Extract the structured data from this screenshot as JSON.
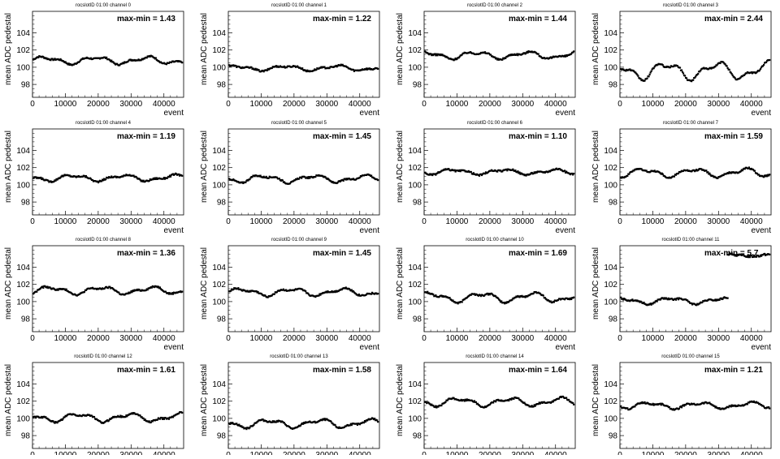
{
  "chart_data": {
    "type": "scatter",
    "layout": "4x4 grid",
    "xlim": [
      0,
      46000
    ],
    "ylim": [
      96.5,
      106.5
    ],
    "xticks": [
      0,
      10000,
      20000,
      30000,
      40000
    ],
    "yticks": [
      98,
      100,
      102,
      104
    ],
    "xlabel": "event",
    "ylabel": "mean ADC pedestal",
    "marker_color": "#000000",
    "panels": [
      {
        "title": "rocslotID 01:00    channel  0",
        "annotation": "max-min = 1.43",
        "baseline": 100.8,
        "amplitude": 0.35
      },
      {
        "title": "rocslotID 01:00    channel  1",
        "annotation": "max-min = 1.22",
        "baseline": 99.9,
        "amplitude": 0.25
      },
      {
        "title": "rocslotID 01:00    channel  2",
        "annotation": "max-min = 1.44",
        "baseline": 101.4,
        "amplitude": 0.35
      },
      {
        "title": "rocslotID 01:00    channel  3",
        "annotation": "max-min = 2.44",
        "baseline": 99.6,
        "amplitude": 0.8
      },
      {
        "title": "rocslotID 01:00    channel  4",
        "annotation": "max-min = 1.19",
        "baseline": 100.8,
        "amplitude": 0.3
      },
      {
        "title": "rocslotID 01:00    channel  5",
        "annotation": "max-min = 1.45",
        "baseline": 100.7,
        "amplitude": 0.35
      },
      {
        "title": "rocslotID 01:00    channel  6",
        "annotation": "max-min = 1.10",
        "baseline": 101.5,
        "amplitude": 0.25
      },
      {
        "title": "rocslotID 01:00    channel  7",
        "annotation": "max-min = 1.59",
        "baseline": 101.4,
        "amplitude": 0.4
      },
      {
        "title": "rocslotID 01:00    channel  8",
        "annotation": "max-min = 1.36",
        "baseline": 101.3,
        "amplitude": 0.35
      },
      {
        "title": "rocslotID 01:00    channel  9",
        "annotation": "max-min = 1.45",
        "baseline": 101.1,
        "amplitude": 0.35
      },
      {
        "title": "rocslotID 01:00    channel  10",
        "annotation": "max-min = 1.69",
        "baseline": 100.5,
        "amplitude": 0.45
      },
      {
        "title": "rocslotID 01:00    channel  11",
        "annotation": "max-min = 5.7",
        "baseline": 100.1,
        "amplitude": 0.3,
        "jump_at": 33000,
        "jump_level": 105.4
      },
      {
        "title": "rocslotID 01:00    channel  12",
        "annotation": "max-min = 1.61",
        "baseline": 100.1,
        "amplitude": 0.4
      },
      {
        "title": "rocslotID 01:00    channel  13",
        "annotation": "max-min = 1.58",
        "baseline": 99.4,
        "amplitude": 0.4
      },
      {
        "title": "rocslotID 01:00    channel  14",
        "annotation": "max-min = 1.64",
        "baseline": 101.9,
        "amplitude": 0.4
      },
      {
        "title": "rocslotID 01:00    channel  15",
        "annotation": "max-min = 1.21",
        "baseline": 101.5,
        "amplitude": 0.3
      }
    ]
  }
}
